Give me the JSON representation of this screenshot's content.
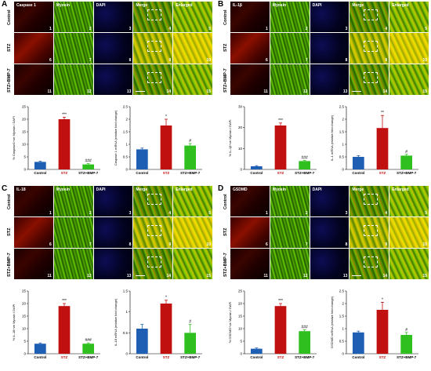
{
  "panels": [
    {
      "letter": "A",
      "headers": [
        "Caspase 1",
        "Myosin",
        "DAPI",
        "Merge",
        "Enlarged"
      ],
      "rows": [
        "Control",
        "STZ",
        "STZ+BMP-7"
      ],
      "numbers": [
        [
          "1",
          "2",
          "3",
          "4",
          "5"
        ],
        [
          "6",
          "7",
          "8",
          "9",
          "10"
        ],
        [
          "11",
          "12",
          "13",
          "14",
          "15"
        ]
      ]
    },
    {
      "letter": "B",
      "headers": [
        "IL-1β",
        "Myosin",
        "DAPI",
        "Merge",
        "Enlarged"
      ],
      "rows": [
        "Control",
        "STZ",
        "STZ+BMP-7"
      ],
      "numbers": [
        [
          "1",
          "2",
          "3",
          "4",
          "5"
        ],
        [
          "6",
          "7",
          "8",
          "9",
          "10"
        ],
        [
          "11",
          "12",
          "13",
          "14",
          "15"
        ]
      ]
    },
    {
      "letter": "C",
      "headers": [
        "IL-18",
        "Myosin",
        "DAPI",
        "Merge",
        "Enlarged"
      ],
      "rows": [
        "Control",
        "STZ",
        "STZ+BMP-7"
      ],
      "numbers": [
        [
          "1",
          "2",
          "3",
          "4",
          "5"
        ],
        [
          "6",
          "7",
          "8",
          "9",
          "10"
        ],
        [
          "11",
          "12",
          "13",
          "14",
          "15"
        ]
      ]
    },
    {
      "letter": "D",
      "headers": [
        "GSDMD",
        "Myosin",
        "DAPI",
        "Merge",
        "Enlarged"
      ],
      "rows": [
        "Control",
        "STZ",
        "STZ+BMP-7"
      ],
      "numbers": [
        [
          "1",
          "2",
          "3",
          "4",
          "5"
        ],
        [
          "6",
          "7",
          "8",
          "9",
          "10"
        ],
        [
          "11",
          "12",
          "13",
          "14",
          "15"
        ]
      ]
    }
  ],
  "colors": {
    "control": "#1f5fb3",
    "stz": "#c01010",
    "bmp": "#2fc020"
  },
  "chart_data": [
    {
      "type": "bar",
      "panel": "A",
      "ylabel": "% Caspase1+ve Myosin / DAPI",
      "categories": [
        "Control",
        "STZ",
        "STZ+BMP-7"
      ],
      "values": [
        3,
        20,
        2
      ],
      "errors": [
        0.3,
        0.8,
        0.3
      ],
      "ylim": [
        0,
        25
      ],
      "yticks": [
        0,
        5,
        10,
        15,
        20,
        25
      ],
      "sig": [
        "",
        "***",
        "###"
      ]
    },
    {
      "type": "bar",
      "panel": "A",
      "ylabel": "Caspase 1 mRNA (relative fold change)",
      "categories": [
        "Control",
        "STZ",
        "STZ+BMP-7"
      ],
      "values": [
        0.8,
        1.75,
        0.95
      ],
      "errors": [
        0.05,
        0.25,
        0.08
      ],
      "ylim": [
        0,
        2.5
      ],
      "yticks": [
        0.0,
        0.5,
        1.0,
        1.5,
        2.0,
        2.5
      ],
      "sig": [
        "",
        "*",
        "#"
      ]
    },
    {
      "type": "bar",
      "panel": "B",
      "ylabel": "% IL-1β+ve Myosin / DAPI",
      "categories": [
        "Control",
        "STZ",
        "STZ+BMP-7"
      ],
      "values": [
        1.5,
        21,
        4
      ],
      "errors": [
        0.3,
        1.2,
        0.3
      ],
      "ylim": [
        0,
        30
      ],
      "yticks": [
        0,
        10,
        20,
        30
      ],
      "sig": [
        "",
        "***",
        "###"
      ]
    },
    {
      "type": "bar",
      "panel": "B",
      "ylabel": "IL-1 mRNA (relative fold change)",
      "categories": [
        "Control",
        "STZ",
        "STZ+BMP-7"
      ],
      "values": [
        0.5,
        1.65,
        0.55
      ],
      "errors": [
        0.05,
        0.5,
        0.05
      ],
      "ylim": [
        0,
        2.5
      ],
      "yticks": [
        0.0,
        0.5,
        1.0,
        1.5,
        2.0,
        2.5
      ],
      "sig": [
        "",
        "**",
        "#"
      ]
    },
    {
      "type": "bar",
      "panel": "C",
      "ylabel": "% IL-18+ve Myosin / DAPI",
      "categories": [
        "Control",
        "STZ",
        "STZ+BMP-7"
      ],
      "values": [
        4,
        19,
        4
      ],
      "errors": [
        0.3,
        1.0,
        0.3
      ],
      "ylim": [
        0,
        25
      ],
      "yticks": [
        0,
        5,
        10,
        15,
        20,
        25
      ],
      "sig": [
        "",
        "***",
        "###"
      ]
    },
    {
      "type": "bar",
      "panel": "C",
      "ylabel": "IL-18 mRNA (relative fold change)",
      "categories": [
        "Control",
        "STZ",
        "STZ+BMP-7"
      ],
      "values": [
        0.6,
        1.2,
        0.5
      ],
      "errors": [
        0.1,
        0.08,
        0.2
      ],
      "ylim": [
        0,
        1.5
      ],
      "yticks": [
        0.0,
        0.5,
        1.0,
        1.5
      ],
      "sig": [
        "",
        "*",
        "#"
      ]
    },
    {
      "type": "bar",
      "panel": "D",
      "ylabel": "% GSDMD+ve Myosin / DAPI",
      "categories": [
        "Control",
        "STZ",
        "STZ+BMP-7"
      ],
      "values": [
        2,
        19,
        9
      ],
      "errors": [
        0.3,
        1.0,
        0.5
      ],
      "ylim": [
        0,
        25
      ],
      "yticks": [
        0,
        5,
        10,
        15,
        20,
        25
      ],
      "sig": [
        "",
        "***",
        "###"
      ]
    },
    {
      "type": "bar",
      "panel": "D",
      "ylabel": "GSDMD mRNA (relative fold change)",
      "categories": [
        "Control",
        "STZ",
        "STZ+BMP-7"
      ],
      "values": [
        0.85,
        1.75,
        0.75
      ],
      "errors": [
        0.05,
        0.3,
        0.1
      ],
      "ylim": [
        0,
        2.5
      ],
      "yticks": [
        0.0,
        0.5,
        1.0,
        1.5,
        2.0,
        2.5
      ],
      "sig": [
        "",
        "*",
        "#"
      ]
    }
  ]
}
